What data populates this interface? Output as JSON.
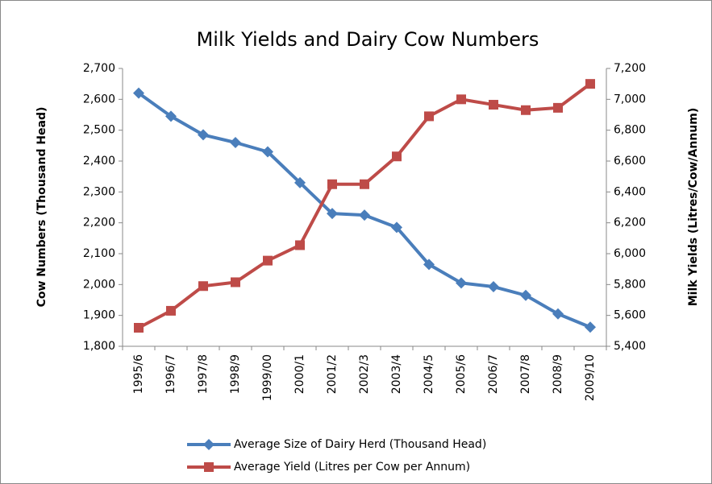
{
  "chart_data": {
    "type": "line",
    "title": "Milk Yields and Dairy Cow Numbers",
    "y_label": "Cow Numbers (Thousand  Head)",
    "y2_label": "Milk Yields (Litres/Cow/Annum)",
    "categories": [
      "1995/6",
      "1996/7",
      "1997/8",
      "1998/9",
      "1999/00",
      "2000/1",
      "2001/2",
      "2002/3",
      "2003/4",
      "2004/5",
      "2005/6",
      "2006/7",
      "2007/8",
      "2008/9",
      "2009/10"
    ],
    "series": [
      {
        "name": "Average Size of Dairy Herd (Thousand Head)",
        "color": "#4a7ebb",
        "marker": "diamond",
        "values": [
          2620,
          2545,
          2485,
          2460,
          2430,
          2330,
          2230,
          2225,
          2185,
          2065,
          2005,
          1993,
          1965,
          1905,
          1862
        ]
      },
      {
        "name": "Average Yield (Litres per Cow per Annum)",
        "color": "#be4b48",
        "marker": "square",
        "axis": "y2",
        "values": [
          5520,
          5630,
          5790,
          5815,
          5955,
          6055,
          6450,
          6450,
          6630,
          6890,
          7000,
          6965,
          6930,
          6945,
          7100
        ]
      }
    ],
    "ylim": [
      1800,
      2700
    ],
    "yticks": [
      {
        "value": 1800,
        "label": "1,800"
      },
      {
        "value": 1900,
        "label": "1,900"
      },
      {
        "value": 2000,
        "label": "2,000"
      },
      {
        "value": 2100,
        "label": "2,100"
      },
      {
        "value": 2200,
        "label": "2,200"
      },
      {
        "value": 2300,
        "label": "2,300"
      },
      {
        "value": 2400,
        "label": "2,400"
      },
      {
        "value": 2500,
        "label": "2,500"
      },
      {
        "value": 2600,
        "label": "2,600"
      },
      {
        "value": 2700,
        "label": "2,700"
      }
    ],
    "y2lim": [
      5400,
      7200
    ],
    "y2ticks": [
      {
        "value": 5400,
        "label": "5,400"
      },
      {
        "value": 5600,
        "label": "5,600"
      },
      {
        "value": 5800,
        "label": "5,800"
      },
      {
        "value": 6000,
        "label": "6,000"
      },
      {
        "value": 6200,
        "label": "6,200"
      },
      {
        "value": 6400,
        "label": "6,400"
      },
      {
        "value": 6600,
        "label": "6,600"
      },
      {
        "value": 6800,
        "label": "6,800"
      },
      {
        "value": 7000,
        "label": "7,000"
      },
      {
        "value": 7200,
        "label": "7,200"
      }
    ],
    "legend": "bottom"
  }
}
